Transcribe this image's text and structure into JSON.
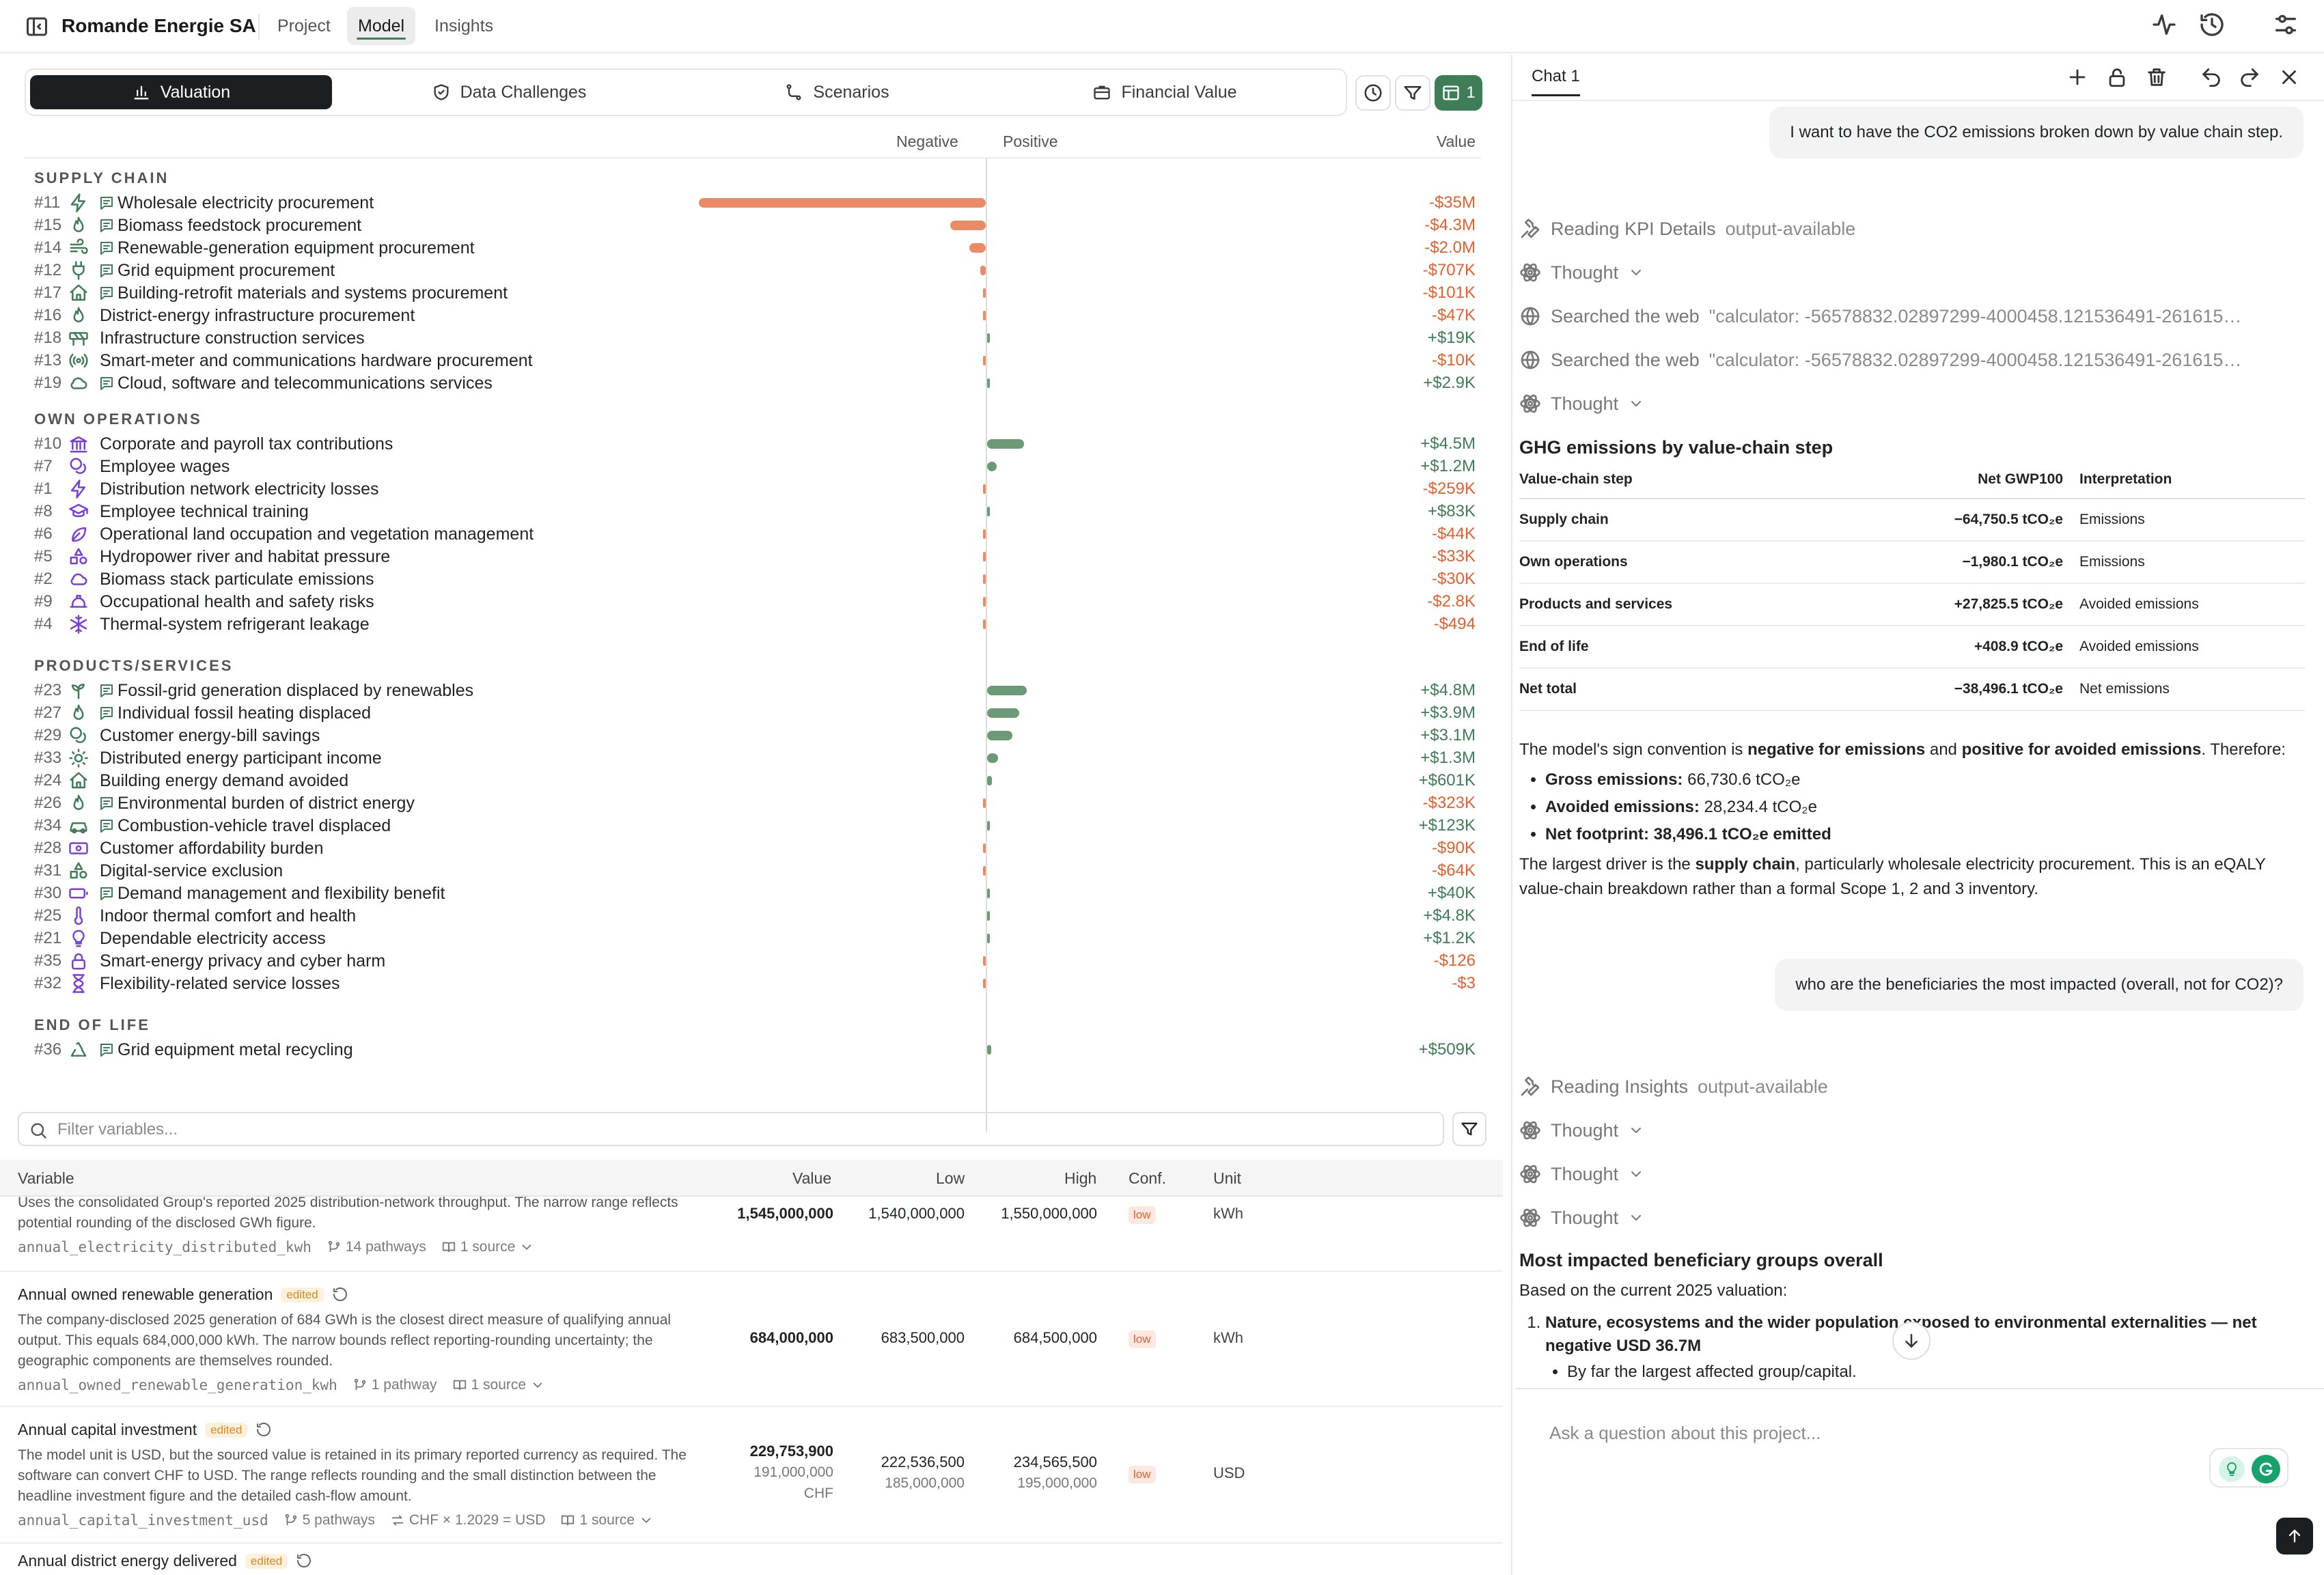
{
  "header": {
    "company": "Romande Energie SA",
    "tabs": [
      "Project",
      "Model",
      "Insights"
    ],
    "active_tab": "Model"
  },
  "valuation": {
    "tabs": [
      "Valuation",
      "Data Challenges",
      "Scenarios",
      "Financial Value"
    ],
    "active_tab": "Valuation",
    "view_count": "1",
    "columns": {
      "negative": "Negative",
      "positive": "Positive",
      "value": "Value"
    },
    "sections": [
      {
        "title": "SUPPLY CHAIN",
        "rows": [
          {
            "num": "#11",
            "icon": "lightning-icon",
            "doc": true,
            "label": "Wholesale electricity procurement",
            "value": "-$35M",
            "amount": -35000000
          },
          {
            "num": "#15",
            "icon": "flame-icon",
            "doc": true,
            "label": "Biomass feedstock procurement",
            "value": "-$4.3M",
            "amount": -4300000
          },
          {
            "num": "#14",
            "icon": "wind-icon",
            "doc": true,
            "label": "Renewable-generation equipment procurement",
            "value": "-$2.0M",
            "amount": -2000000
          },
          {
            "num": "#12",
            "icon": "plug-icon",
            "doc": true,
            "label": "Grid equipment procurement",
            "value": "-$707K",
            "amount": -707000
          },
          {
            "num": "#17",
            "icon": "house-icon",
            "doc": true,
            "label": "Building-retrofit materials and systems procurement",
            "value": "-$101K",
            "amount": -101000
          },
          {
            "num": "#16",
            "icon": "flame-icon",
            "doc": false,
            "label": "District-energy infrastructure procurement",
            "value": "-$47K",
            "amount": -47000
          },
          {
            "num": "#18",
            "icon": "construction-icon",
            "doc": false,
            "label": "Infrastructure construction services",
            "value": "+$19K",
            "amount": 19000
          },
          {
            "num": "#13",
            "icon": "radio-icon",
            "doc": false,
            "label": "Smart-meter and communications hardware procurement",
            "value": "-$10K",
            "amount": -10000
          },
          {
            "num": "#19",
            "icon": "cloud-icon",
            "doc": true,
            "label": "Cloud, software and telecommunications services",
            "value": "+$2.9K",
            "amount": 2900
          }
        ]
      },
      {
        "title": "OWN OPERATIONS",
        "rows": [
          {
            "num": "#10",
            "icon": "bank-icon",
            "doc": false,
            "label": "Corporate and payroll tax contributions",
            "value": "+$4.5M",
            "amount": 4500000
          },
          {
            "num": "#7",
            "icon": "coins-icon",
            "doc": false,
            "label": "Employee wages",
            "value": "+$1.2M",
            "amount": 1200000
          },
          {
            "num": "#1",
            "icon": "lightning-icon",
            "doc": false,
            "label": "Distribution network electricity losses",
            "value": "-$259K",
            "amount": -259000
          },
          {
            "num": "#8",
            "icon": "graduation-cap-icon",
            "doc": false,
            "label": "Employee technical training",
            "value": "+$83K",
            "amount": 83000
          },
          {
            "num": "#6",
            "icon": "leaf-icon",
            "doc": false,
            "label": "Operational land occupation and vegetation management",
            "value": "-$44K",
            "amount": -44000
          },
          {
            "num": "#5",
            "icon": "shapes-icon",
            "doc": false,
            "label": "Hydropower river and habitat pressure",
            "value": "-$33K",
            "amount": -33000
          },
          {
            "num": "#2",
            "icon": "cloud-icon",
            "doc": false,
            "label": "Biomass stack particulate emissions",
            "value": "-$30K",
            "amount": -30000
          },
          {
            "num": "#9",
            "icon": "hard-hat-icon",
            "doc": false,
            "label": "Occupational health and safety risks",
            "value": "-$2.8K",
            "amount": -2800
          },
          {
            "num": "#4",
            "icon": "snowflake-icon",
            "doc": false,
            "label": "Thermal-system refrigerant leakage",
            "value": "-$494",
            "amount": -494
          }
        ]
      },
      {
        "title": "PRODUCTS/SERVICES",
        "rows": [
          {
            "num": "#23",
            "icon": "sprout-icon",
            "doc": true,
            "label": "Fossil-grid generation displaced by renewables",
            "value": "+$4.8M",
            "amount": 4800000
          },
          {
            "num": "#27",
            "icon": "flame-icon",
            "doc": true,
            "label": "Individual fossil heating displaced",
            "value": "+$3.9M",
            "amount": 3900000
          },
          {
            "num": "#29",
            "icon": "coins-icon",
            "doc": false,
            "label": "Customer energy-bill savings",
            "value": "+$3.1M",
            "amount": 3100000
          },
          {
            "num": "#33",
            "icon": "sun-icon",
            "doc": false,
            "label": "Distributed energy participant income",
            "value": "+$1.3M",
            "amount": 1300000
          },
          {
            "num": "#24",
            "icon": "house-icon",
            "doc": false,
            "label": "Building energy demand avoided",
            "value": "+$601K",
            "amount": 601000
          },
          {
            "num": "#26",
            "icon": "flame-icon",
            "doc": true,
            "label": "Environmental burden of district energy",
            "value": "-$323K",
            "amount": -323000
          },
          {
            "num": "#34",
            "icon": "car-icon",
            "doc": true,
            "label": "Combustion-vehicle travel displaced",
            "value": "+$123K",
            "amount": 123000
          },
          {
            "num": "#28",
            "icon": "banknote-icon",
            "doc": false,
            "label": "Customer affordability burden",
            "value": "-$90K",
            "amount": -90000
          },
          {
            "num": "#31",
            "icon": "shapes-icon",
            "doc": false,
            "label": "Digital-service exclusion",
            "value": "-$64K",
            "amount": -64000
          },
          {
            "num": "#30",
            "icon": "battery-icon",
            "doc": true,
            "label": "Demand management and flexibility benefit",
            "value": "+$40K",
            "amount": 40000
          },
          {
            "num": "#25",
            "icon": "thermometer-icon",
            "doc": false,
            "label": "Indoor thermal comfort and health",
            "value": "+$4.8K",
            "amount": 4800
          },
          {
            "num": "#21",
            "icon": "lightbulb-icon",
            "doc": false,
            "label": "Dependable electricity access",
            "value": "+$1.2K",
            "amount": 1200
          },
          {
            "num": "#35",
            "icon": "lock-icon",
            "doc": false,
            "label": "Smart-energy privacy and cyber harm",
            "value": "-$126",
            "amount": -126
          },
          {
            "num": "#32",
            "icon": "hourglass-icon",
            "doc": false,
            "label": "Flexibility-related service losses",
            "value": "-$3",
            "amount": -3
          }
        ]
      },
      {
        "title": "END OF LIFE",
        "rows": [
          {
            "num": "#36",
            "icon": "recycle-icon",
            "doc": true,
            "label": "Grid equipment metal recycling",
            "value": "+$509K",
            "amount": 509000
          }
        ]
      }
    ]
  },
  "variables": {
    "filter_placeholder": "Filter variables...",
    "columns": [
      "Variable",
      "Value",
      "Low",
      "High",
      "Conf.",
      "Unit"
    ],
    "rows": [
      {
        "name": "",
        "edited": false,
        "description": "Uses the consolidated Group's reported 2025 distribution-network throughput. The narrow range reflects potential rounding of the disclosed GWh figure.",
        "key": "annual_electricity_distributed_kwh",
        "pathways": "14 pathways",
        "conversion": "",
        "sources": "1 source",
        "value": "1,545,000,000",
        "value_sub": "",
        "value_unit": "",
        "low": "1,540,000,000",
        "low_sub": "",
        "high": "1,550,000,000",
        "high_sub": "",
        "conf": "low",
        "unit": "kWh"
      },
      {
        "name": "Annual owned renewable generation",
        "edited": true,
        "description": "The company-disclosed 2025 generation of 684 GWh is the closest direct measure of qualifying annual output. This equals 684,000,000 kWh. The narrow bounds reflect reporting-rounding uncertainty; the geographic components are themselves rounded.",
        "key": "annual_owned_renewable_generation_kwh",
        "pathways": "1 pathway",
        "conversion": "",
        "sources": "1 source",
        "value": "684,000,000",
        "value_sub": "",
        "value_unit": "",
        "low": "683,500,000",
        "low_sub": "",
        "high": "684,500,000",
        "high_sub": "",
        "conf": "low",
        "unit": "kWh"
      },
      {
        "name": "Annual capital investment",
        "edited": true,
        "description": "The model unit is USD, but the sourced value is retained in its primary reported currency as required. The software can convert CHF to USD. The range reflects rounding and the small distinction between the headline investment figure and the detailed cash-flow amount.",
        "key": "annual_capital_investment_usd",
        "pathways": "5 pathways",
        "conversion": "CHF × 1.2029 = USD",
        "sources": "1 source",
        "value": "229,753,900",
        "value_sub": "191,000,000",
        "value_unit": "CHF",
        "low": "222,536,500",
        "low_sub": "185,000,000",
        "high": "234,565,500",
        "high_sub": "195,000,000",
        "conf": "low",
        "unit": "USD"
      },
      {
        "name": "Annual district energy delivered",
        "edited": true,
        "description": "",
        "key": "",
        "pathways": "",
        "conversion": "",
        "sources": "",
        "value": "",
        "value_sub": "",
        "value_unit": "",
        "low": "",
        "low_sub": "",
        "high": "",
        "high_sub": "",
        "conf": "",
        "unit": ""
      }
    ],
    "edited_label": "edited"
  },
  "chat": {
    "tab": "Chat 1",
    "msg1": "I want to have the CO2 emissions broken down by value chain step.",
    "steps1": [
      {
        "icon": "wrench-icon",
        "text": "Reading KPI Details",
        "suffix": "output-available"
      },
      {
        "icon": "brain-icon",
        "text": "Thought",
        "suffix": ""
      },
      {
        "icon": "globe-icon",
        "text": "Searched the web",
        "suffix": "\"calculator: -56578832.02897299-4000458.121536491-261615…"
      },
      {
        "icon": "globe-icon",
        "text": "Searched the web",
        "suffix": "\"calculator: -56578832.02897299-4000458.121536491-261615…"
      },
      {
        "icon": "brain-icon",
        "text": "Thought",
        "suffix": ""
      }
    ],
    "ghg_title": "GHG emissions by value-chain step",
    "ghg_cols": [
      "Value-chain step",
      "Net GWP100",
      "Interpretation"
    ],
    "ghg_rows": [
      {
        "step": "Supply chain",
        "value": "−64,750.5 tCO₂e",
        "interp": "Emissions"
      },
      {
        "step": "Own operations",
        "value": "−1,980.1 tCO₂e",
        "interp": "Emissions"
      },
      {
        "step": "Products and services",
        "value": "+27,825.5 tCO₂e",
        "interp": "Avoided emissions"
      },
      {
        "step": "End of life",
        "value": "+408.9 tCO₂e",
        "interp": "Avoided emissions"
      },
      {
        "step": "Net total",
        "value": "−38,496.1 tCO₂e",
        "interp": "Net emissions"
      }
    ],
    "p1_a": "The model's sign convention is ",
    "p1_b": "negative for emissions",
    "p1_c": " and ",
    "p1_d": "positive for avoided emissions",
    "p1_e": ". Therefore:",
    "bul": [
      {
        "k": "Gross emissions:",
        "v": " 66,730.6 tCO₂e"
      },
      {
        "k": "Avoided emissions:",
        "v": " 28,234.4 tCO₂e"
      },
      {
        "k": "Net footprint: 38,496.1 tCO₂e emitted",
        "v": ""
      }
    ],
    "p2_a": "The largest driver is the ",
    "p2_b": "supply chain",
    "p2_c": ", particularly wholesale electricity procurement. This is an eQALY value-chain breakdown rather than a formal Scope 1, 2 and 3 inventory.",
    "msg2": "who are the beneficiaries the most impacted (overall, not for CO2)?",
    "steps2": [
      {
        "icon": "wrench-icon",
        "text": "Reading Insights",
        "suffix": "output-available"
      },
      {
        "icon": "brain-icon",
        "text": "Thought",
        "suffix": ""
      },
      {
        "icon": "brain-icon",
        "text": "Thought",
        "suffix": ""
      },
      {
        "icon": "brain-icon",
        "text": "Thought",
        "suffix": ""
      }
    ],
    "impact_title": "Most impacted beneficiary groups overall",
    "impact_intro": "Based on the current 2025 valuation:",
    "impact_item1": "Nature, ecosystems and the wider population exposed to environmental externalities — net negative USD 36.7M",
    "impact_sub1": "By far the largest affected group/capital.",
    "input_placeholder": "Ask a question about this project..."
  }
}
